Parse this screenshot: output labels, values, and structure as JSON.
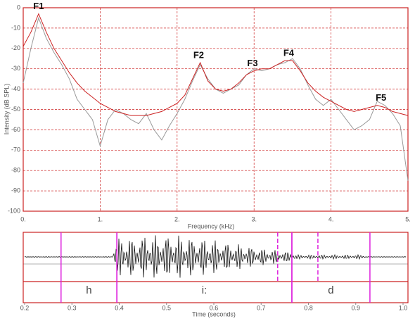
{
  "chart_data": [
    {
      "type": "line",
      "x_label": "Frequency (kHz)",
      "y_label": "Intensity (dB SPL)",
      "x": [
        0,
        0.1,
        0.2,
        0.3,
        0.4,
        0.5,
        0.6,
        0.7,
        0.8,
        0.9,
        1,
        1.1,
        1.2,
        1.3,
        1.4,
        1.5,
        1.6,
        1.7,
        1.8,
        1.9,
        2,
        2.1,
        2.2,
        2.3,
        2.4,
        2.5,
        2.6,
        2.7,
        2.8,
        2.9,
        3,
        3.1,
        3.2,
        3.3,
        3.4,
        3.5,
        3.6,
        3.7,
        3.8,
        3.9,
        4,
        4.1,
        4.2,
        4.3,
        4.4,
        4.5,
        4.6,
        4.7,
        4.8,
        4.9,
        5
      ],
      "series": [
        {
          "color": "#999999",
          "values": [
            -37,
            -20,
            -5,
            -15,
            -22,
            -28,
            -35,
            -45,
            -50,
            -55,
            -68,
            -55,
            -50,
            -52,
            -55,
            -57,
            -52,
            -60,
            -65,
            -58,
            -52,
            -45,
            -36,
            -28,
            -35,
            -40,
            -42,
            -40,
            -38,
            -33,
            -30,
            -31,
            -30,
            -28,
            -27,
            -25,
            -30,
            -38,
            -45,
            -48,
            -45,
            -50,
            -55,
            -60,
            -58,
            -55,
            -46,
            -48,
            -52,
            -58,
            -85
          ]
        },
        {
          "color": "#cc2222",
          "values": [
            -19,
            -12,
            -3,
            -12,
            -20,
            -26,
            -32,
            -37,
            -41,
            -44,
            -47,
            -49,
            -51,
            -52,
            -53,
            -53,
            -53,
            -52,
            -51,
            -49,
            -47,
            -43,
            -35,
            -27,
            -36,
            -40,
            -41,
            -40,
            -37,
            -33,
            -31,
            -30,
            -30,
            -28,
            -26,
            -26,
            -31,
            -37,
            -41,
            -44,
            -46,
            -48,
            -50,
            -51,
            -50,
            -49,
            -48,
            -49,
            -51,
            -52,
            -53
          ]
        }
      ],
      "annotations": [
        {
          "text": "F1",
          "x": 0.2,
          "y": -3
        },
        {
          "text": "F2",
          "x": 2.28,
          "y": -27
        },
        {
          "text": "F3",
          "x": 2.98,
          "y": -31
        },
        {
          "text": "F4",
          "x": 3.45,
          "y": -26
        },
        {
          "text": "F5",
          "x": 4.65,
          "y": -48
        }
      ],
      "xlim": [
        0,
        5
      ],
      "xticks": [
        {
          "value": 0,
          "label": "0."
        },
        {
          "value": 1,
          "label": "1."
        },
        {
          "value": 2,
          "label": "2."
        },
        {
          "value": 3,
          "label": "3."
        },
        {
          "value": 4,
          "label": "4."
        },
        {
          "value": 5,
          "label": "5."
        }
      ],
      "ylim": [
        -100,
        0
      ],
      "yticks": [
        0,
        -10,
        -20,
        -30,
        -40,
        -50,
        -60,
        -70,
        -80,
        -90,
        -100
      ],
      "grid": true
    },
    {
      "type": "waveform",
      "x_label": "Time (seconds)",
      "xlim": [
        0.2,
        1
      ],
      "xticks": [
        0.2,
        0.3,
        0.4,
        0.5,
        0.6,
        0.7,
        0.8,
        0.9,
        {
          "value": 1,
          "label": "1.0"
        }
      ],
      "segments": [
        {
          "label": "h",
          "start": 0.277,
          "end": 0.395
        },
        {
          "label": "i:",
          "start": 0.395,
          "end": 0.765
        },
        {
          "label": "d",
          "start": 0.765,
          "end": 0.93
        }
      ],
      "markers": [
        0.735,
        0.82
      ]
    }
  ]
}
